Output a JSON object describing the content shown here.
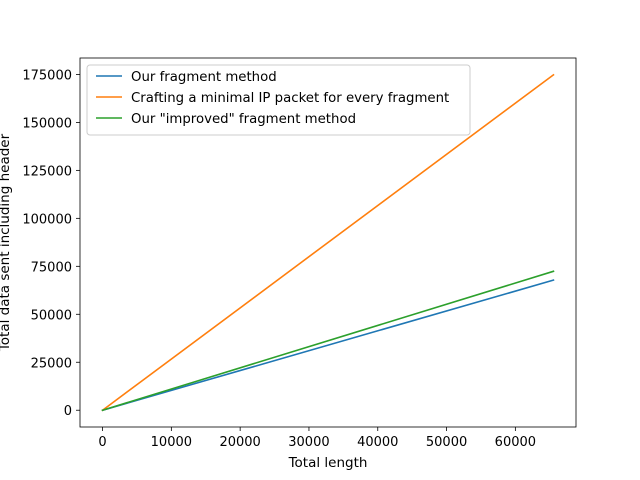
{
  "chart_data": {
    "type": "line",
    "title": "",
    "xlabel": "Total length",
    "ylabel": "Total data sent including header",
    "xlim": [
      -3277,
      68813
    ],
    "ylim": [
      -8741,
      183563
    ],
    "xticks": [
      0,
      10000,
      20000,
      30000,
      40000,
      50000,
      60000
    ],
    "xtick_labels": [
      "0",
      "10000",
      "20000",
      "30000",
      "40000",
      "50000",
      "60000"
    ],
    "yticks": [
      0,
      25000,
      50000,
      75000,
      100000,
      125000,
      150000,
      175000
    ],
    "ytick_labels": [
      "0",
      "25000",
      "50000",
      "75000",
      "100000",
      "125000",
      "150000",
      "175000"
    ],
    "grid": false,
    "legend_location": "upper left",
    "series": [
      {
        "name": "Our fragment method",
        "color": "#1f77b4",
        "x": [
          0,
          65535
        ],
        "y": [
          0,
          67800
        ]
      },
      {
        "name": "Crafting a minimal IP packet for every fragment",
        "color": "#ff7f0e",
        "x": [
          0,
          65535
        ],
        "y": [
          0,
          174800
        ]
      },
      {
        "name": "Our \"improved\" fragment method",
        "color": "#2ca02c",
        "x": [
          0,
          65535
        ],
        "y": [
          0,
          72400
        ]
      }
    ]
  }
}
